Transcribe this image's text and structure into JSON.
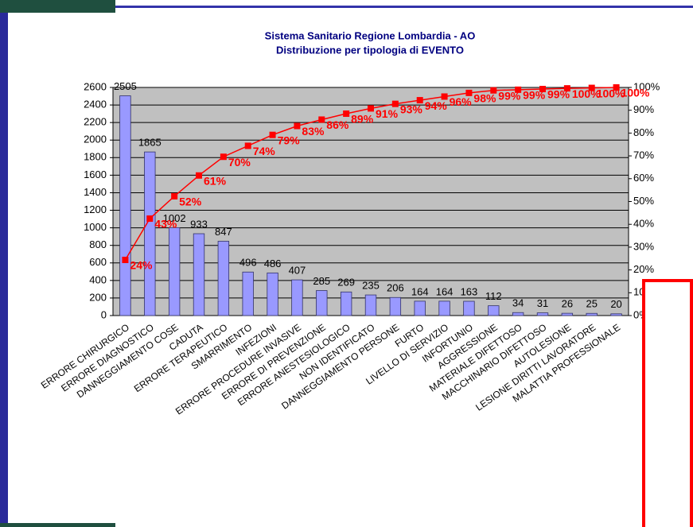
{
  "chart_data": {
    "type": "pareto",
    "title": "Sistema Sanitario Regione Lombardia - AO",
    "subtitle": "Distribuzione per tipologia di EVENTO",
    "categories": [
      "ERRORE CHIRURGICO",
      "ERRORE DIAGNOSTICO",
      "DANNEGGIAMENTO COSE",
      "CADUTA",
      "ERRORE TERAPEUTICO",
      "SMARRIMENTO",
      "INFEZIONI",
      "ERRORE PROCEDURE INVASIVE",
      "ERRORE DI PREVENZIONE",
      "ERRORE ANESTESIOLOGICO",
      "NON IDENTIFICATO",
      "DANNEGGIAMENTO PERSONE",
      "FURTO",
      "LIVELLO DI SERVIZIO",
      "INFORTUNIO",
      "AGGRESSIONE",
      "MATERIALE DIFETTOSO",
      "MACCHINARIO DIFETTOSO",
      "AUTOLESIONE",
      "LESIONE DIRITTI LAVORATORE",
      "MALATTIA PROFESSIONALE"
    ],
    "series": [
      {
        "color": "#9999ff",
        "values": [
          2505,
          1865,
          1002,
          933,
          847,
          496,
          486,
          407,
          285,
          269,
          235,
          206,
          164,
          164,
          163,
          112,
          34,
          31,
          26,
          25,
          20
        ]
      },
      {
        "color": "#ff0000",
        "axis": "y2",
        "values": [
          24.4,
          42.5,
          52.3,
          61.4,
          69.6,
          74.4,
          79.2,
          83.1,
          85.9,
          88.5,
          90.8,
          92.8,
          94.4,
          96.0,
          97.6,
          98.7,
          99.0,
          99.3,
          99.6,
          99.8,
          100
        ],
        "value_labels": [
          "24%",
          "43%",
          "52%",
          "61%",
          "70%",
          "74%",
          "79%",
          "83%",
          "86%",
          "89%",
          "91%",
          "93%",
          "94%",
          "96%",
          "98%",
          "99%",
          "99%",
          "99%",
          "100%",
          "100%",
          "100%"
        ]
      }
    ],
    "ylim": [
      0,
      2600
    ],
    "yticks": [
      0,
      200,
      400,
      600,
      800,
      1000,
      1200,
      1400,
      1600,
      1800,
      2000,
      2200,
      2400,
      2600
    ],
    "y2lim": [
      0,
      100
    ],
    "y2ticks": [
      {
        "value": 0,
        "label": "0%"
      },
      {
        "value": 10,
        "label": "10%"
      },
      {
        "value": 20,
        "label": "20%"
      },
      {
        "value": 30,
        "label": "30%"
      },
      {
        "value": 40,
        "label": "40%"
      },
      {
        "value": 50,
        "label": "50%"
      },
      {
        "value": 60,
        "label": "60%"
      },
      {
        "value": 70,
        "label": "70%"
      },
      {
        "value": 80,
        "label": "80%"
      },
      {
        "value": 90,
        "label": "90%"
      },
      {
        "value": 100,
        "label": "100%"
      }
    ],
    "grid": true
  }
}
